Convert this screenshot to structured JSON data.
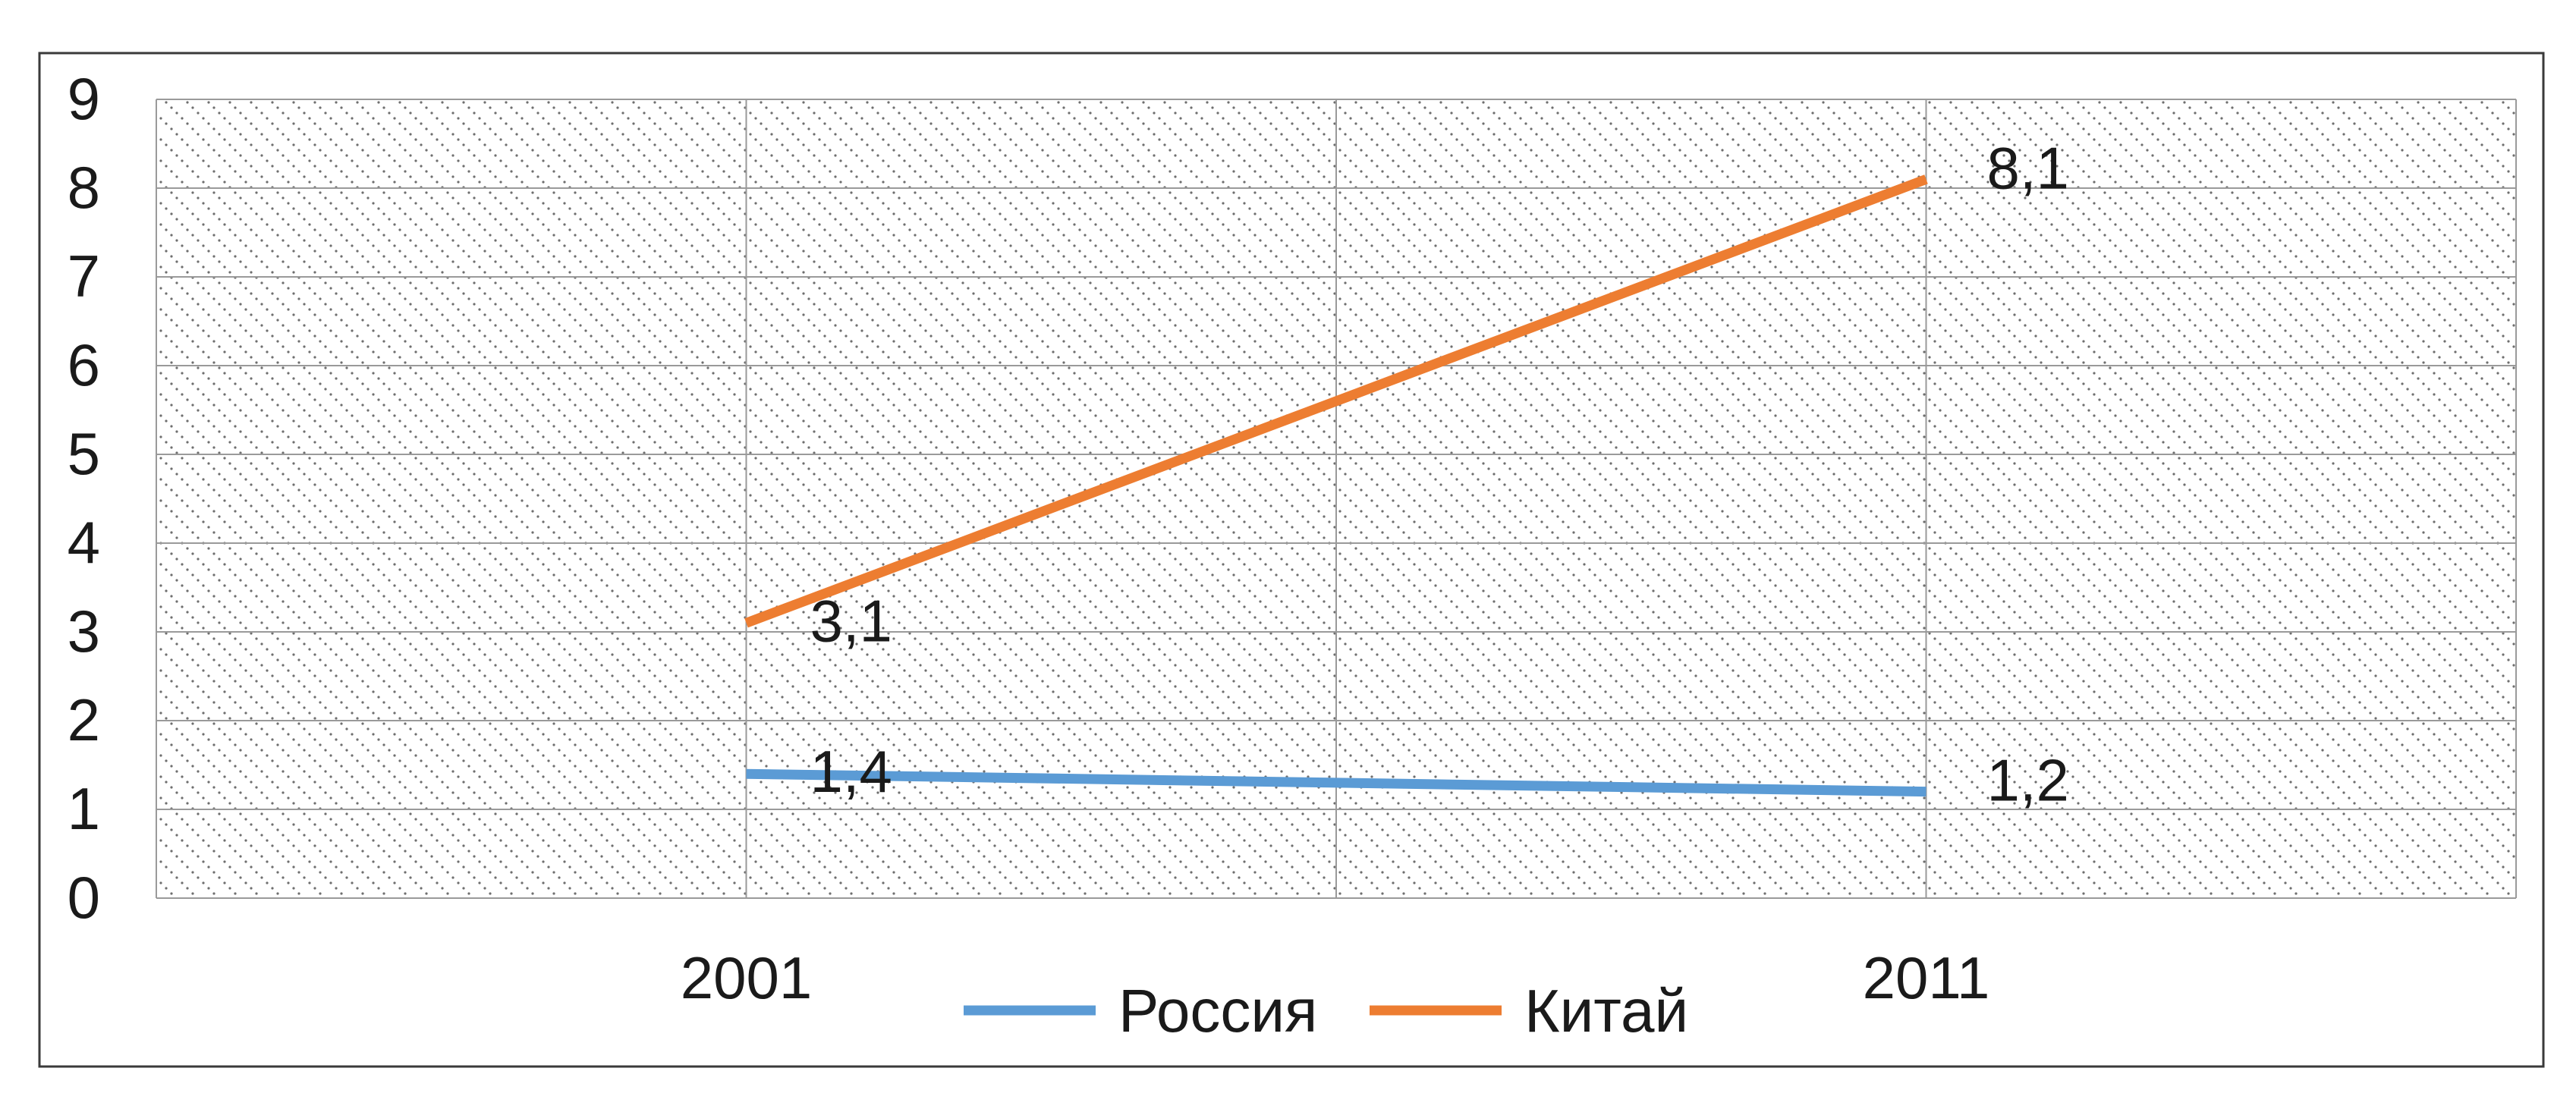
{
  "chart_data": {
    "type": "line",
    "categories": [
      "2001",
      "2011"
    ],
    "y_ticks": [
      "0",
      "1",
      "2",
      "3",
      "4",
      "5",
      "6",
      "7",
      "8",
      "9"
    ],
    "ylim": [
      0,
      9
    ],
    "grid": true,
    "legend_placement": "bottom",
    "series": [
      {
        "name": "Россия",
        "color": "#5b9bd5",
        "values": [
          1.4,
          1.2
        ],
        "labels": [
          "1,4",
          "1,2"
        ]
      },
      {
        "name": "Китай",
        "color": "#ed7d31",
        "values": [
          3.1,
          8.1
        ],
        "labels": [
          "3,1",
          "8,1"
        ]
      }
    ]
  }
}
